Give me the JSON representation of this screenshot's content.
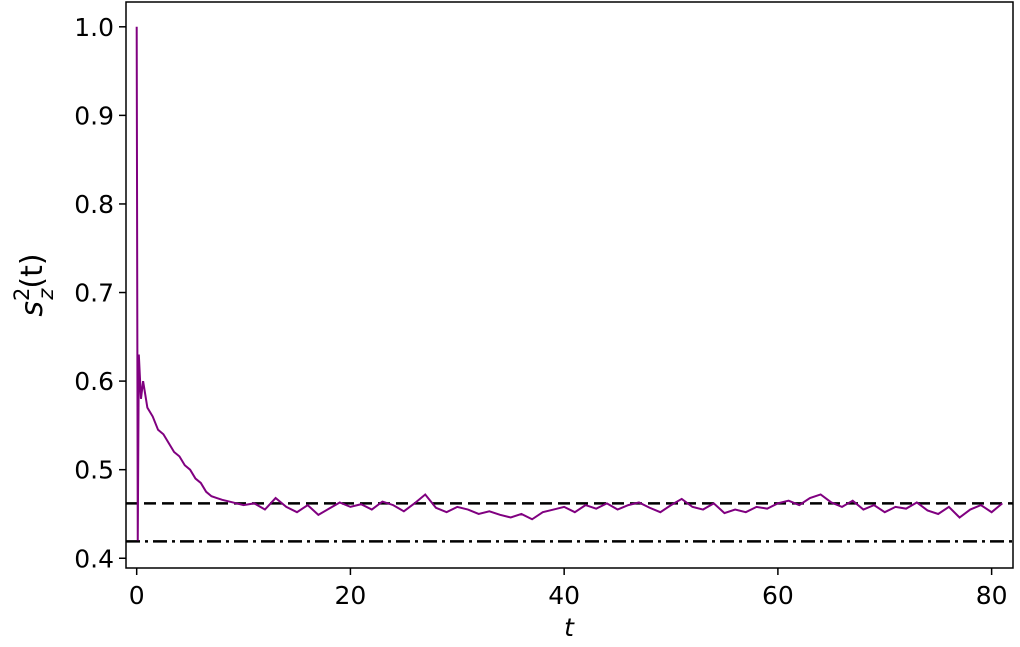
{
  "chart_data": {
    "type": "line",
    "xlabel": "t",
    "ylabel": [
      "s",
      "2",
      "z",
      "(t)"
    ],
    "color": "#800080",
    "x": [
      0,
      0.1,
      0.2,
      0.4,
      0.6,
      1,
      1.5,
      2,
      2.5,
      3,
      3.5,
      4,
      4.5,
      5,
      5.5,
      6,
      6.5,
      7,
      7.5,
      8,
      9,
      10,
      11,
      12,
      13,
      14,
      15,
      16,
      17,
      18,
      19,
      20,
      21,
      22,
      23,
      24,
      25,
      26,
      27,
      28,
      29,
      30,
      31,
      32,
      33,
      34,
      35,
      36,
      37,
      38,
      39,
      40,
      41,
      42,
      43,
      44,
      45,
      46,
      47,
      48,
      49,
      50,
      51,
      52,
      53,
      54,
      55,
      56,
      57,
      58,
      59,
      60,
      61,
      62,
      63,
      64,
      65,
      66,
      67,
      68,
      69,
      70,
      71,
      72,
      73,
      74,
      75,
      76,
      77,
      78,
      79,
      80,
      81
    ],
    "values": [
      1.0,
      0.42,
      0.63,
      0.58,
      0.6,
      0.57,
      0.56,
      0.545,
      0.54,
      0.53,
      0.52,
      0.515,
      0.505,
      0.5,
      0.49,
      0.485,
      0.475,
      0.47,
      0.468,
      0.466,
      0.463,
      0.46,
      0.462,
      0.455,
      0.468,
      0.458,
      0.452,
      0.46,
      0.449,
      0.456,
      0.463,
      0.458,
      0.461,
      0.455,
      0.464,
      0.46,
      0.453,
      0.462,
      0.472,
      0.457,
      0.452,
      0.458,
      0.455,
      0.45,
      0.453,
      0.449,
      0.446,
      0.45,
      0.444,
      0.452,
      0.455,
      0.458,
      0.452,
      0.46,
      0.456,
      0.462,
      0.455,
      0.46,
      0.463,
      0.457,
      0.452,
      0.46,
      0.467,
      0.458,
      0.455,
      0.462,
      0.451,
      0.455,
      0.452,
      0.458,
      0.456,
      0.462,
      0.465,
      0.46,
      0.468,
      0.472,
      0.463,
      0.458,
      0.465,
      0.455,
      0.46,
      0.452,
      0.458,
      0.456,
      0.463,
      0.454,
      0.45,
      0.458,
      0.446,
      0.455,
      0.46,
      0.452,
      0.462
    ],
    "hlines": [
      {
        "value": 0.462,
        "style": "dashed",
        "color": "#000000"
      },
      {
        "value": 0.419,
        "style": "dashdot",
        "color": "#000000"
      }
    ],
    "xlim": [
      -1,
      82
    ],
    "ylim": [
      0.389,
      1.028
    ],
    "xticks": [
      0,
      20,
      40,
      60,
      80
    ],
    "yticks": [
      0.4,
      0.5,
      0.6,
      0.7,
      0.8,
      0.9,
      {
        "value": 1,
        "label": "1.0"
      }
    ],
    "grid": false
  }
}
